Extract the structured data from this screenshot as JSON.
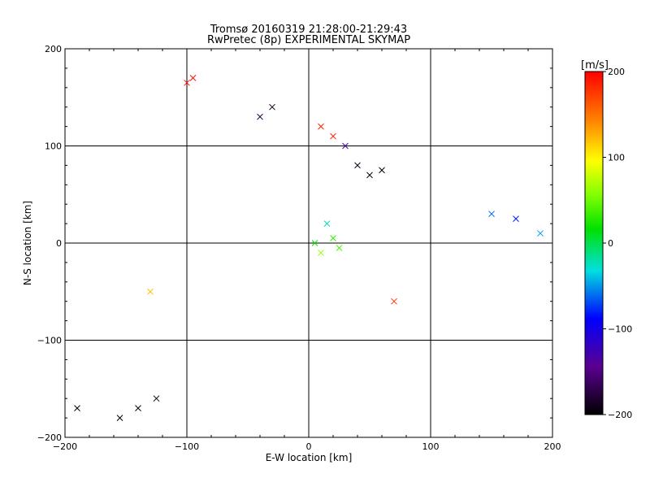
{
  "chart_data": {
    "type": "scatter",
    "title_line1": "Tromsø 20160319 21:28:00-21:29:43",
    "title_line2": "RwPretec (8p) EXPERIMENTAL SKYMAP",
    "xlabel": "E-W location [km]",
    "ylabel": "N-S location [km]",
    "xlim": [
      -200,
      200
    ],
    "ylim": [
      -200,
      200
    ],
    "xticks": [
      -200,
      -100,
      0,
      100,
      200
    ],
    "yticks": [
      -200,
      -100,
      0,
      100,
      200
    ],
    "grid": true,
    "colorbar": {
      "label": "[m/s]",
      "range": [
        -200,
        200
      ],
      "ticks": [
        200,
        100,
        0,
        -100,
        -200
      ]
    },
    "points": [
      {
        "x": 20,
        "y": 5,
        "v": 30
      },
      {
        "x": 10,
        "y": -10,
        "v": 60
      },
      {
        "x": 15,
        "y": 20,
        "v": -20
      },
      {
        "x": 5,
        "y": 0,
        "v": 20
      },
      {
        "x": 25,
        "y": -5,
        "v": 40
      },
      {
        "x": 30,
        "y": 100,
        "v": -130
      },
      {
        "x": 40,
        "y": 80,
        "v": -190
      },
      {
        "x": 50,
        "y": 70,
        "v": -195
      },
      {
        "x": 60,
        "y": 75,
        "v": -200
      },
      {
        "x": 20,
        "y": 110,
        "v": 190
      },
      {
        "x": 10,
        "y": 120,
        "v": 185
      },
      {
        "x": -30,
        "y": 140,
        "v": -195
      },
      {
        "x": -40,
        "y": 130,
        "v": -170
      },
      {
        "x": -95,
        "y": 170,
        "v": 195
      },
      {
        "x": -100,
        "y": 165,
        "v": 190
      },
      {
        "x": -155,
        "y": -180,
        "v": -200
      },
      {
        "x": -140,
        "y": -170,
        "v": -200
      },
      {
        "x": -125,
        "y": -160,
        "v": -200
      },
      {
        "x": 150,
        "y": 30,
        "v": -60
      },
      {
        "x": 170,
        "y": 25,
        "v": -80
      },
      {
        "x": 190,
        "y": 10,
        "v": -50
      },
      {
        "x": -130,
        "y": -50,
        "v": 120
      },
      {
        "x": 70,
        "y": -60,
        "v": 180
      },
      {
        "x": -190,
        "y": -170,
        "v": -200
      }
    ]
  }
}
